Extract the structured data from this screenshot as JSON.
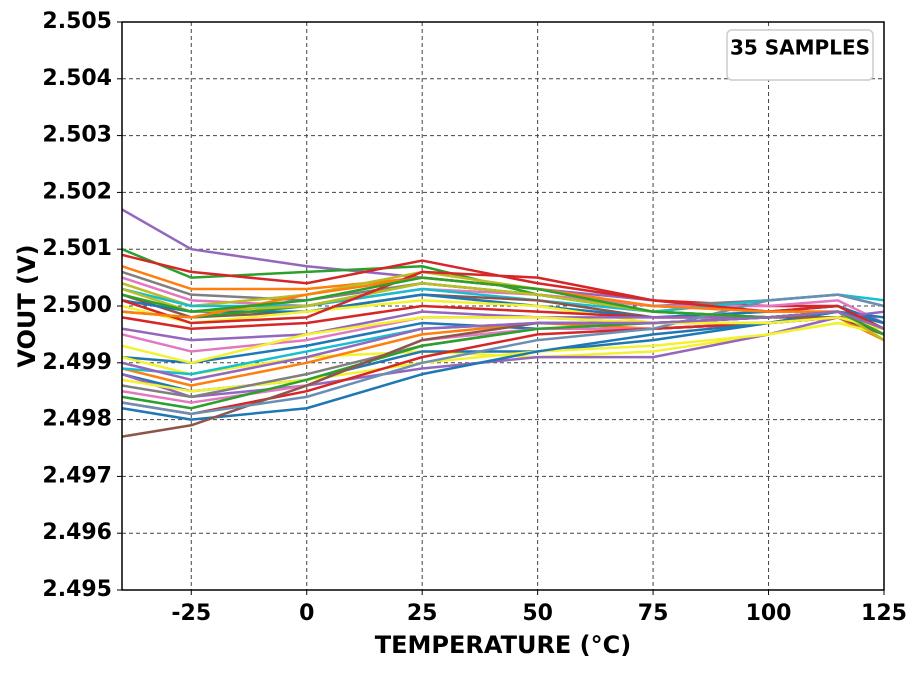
{
  "chart_data": {
    "type": "line",
    "xlabel": "TEMPERATURE (°C)",
    "ylabel": "VOUT (V)",
    "annotation": "35 SAMPLES",
    "x": [
      -40,
      -25,
      0,
      25,
      50,
      75,
      100,
      115,
      125
    ],
    "xlim": [
      -40,
      125
    ],
    "xticks": [
      -25,
      0,
      25,
      50,
      75,
      100,
      125
    ],
    "ylim": [
      2.495,
      2.505
    ],
    "yticks": [
      2.495,
      2.496,
      2.497,
      2.498,
      2.499,
      {
        "value": 2.5,
        "label": "2.500"
      },
      2.501,
      2.502,
      2.503,
      2.504,
      2.505
    ],
    "grid": true,
    "series": [
      {
        "color": "#9467bd",
        "values": [
          2.5017,
          2.501,
          2.5007,
          2.5005,
          2.5003,
          2.5001,
          2.4999,
          2.5,
          2.4996
        ]
      },
      {
        "color": "#2ca02c",
        "values": [
          2.501,
          2.5005,
          2.5006,
          2.5007,
          2.5002,
          2.4999,
          2.4998,
          2.4999,
          2.4994
        ]
      },
      {
        "color": "#d62728",
        "values": [
          2.5009,
          2.5006,
          2.5004,
          2.5008,
          2.5004,
          2.5001,
          2.5,
          2.5,
          2.4997
        ]
      },
      {
        "color": "#ff7f0e",
        "values": [
          2.5007,
          2.5003,
          2.5003,
          2.5005,
          2.5003,
          2.5,
          2.4999,
          2.4999,
          2.4995
        ]
      },
      {
        "color": "#7f7f7f",
        "values": [
          2.5006,
          2.5002,
          2.5001,
          2.5004,
          2.5002,
          2.5,
          2.5001,
          2.5002,
          2.5
        ]
      },
      {
        "color": "#e377c2",
        "values": [
          2.5005,
          2.5001,
          2.5,
          2.5003,
          2.5002,
          2.5,
          2.5,
          2.5001,
          2.4997
        ]
      },
      {
        "color": "#bcbd22",
        "values": [
          2.5004,
          2.5,
          2.5002,
          2.5006,
          2.5003,
          2.4999,
          2.4998,
          2.4998,
          2.4994
        ]
      },
      {
        "color": "#17becf",
        "values": [
          2.5003,
          2.5,
          2.5,
          2.5003,
          2.5001,
          2.4999,
          2.5001,
          2.5002,
          2.5001
        ]
      },
      {
        "color": "#8c564b",
        "values": [
          2.5002,
          2.4998,
          2.4999,
          2.5002,
          2.5001,
          2.4998,
          2.4998,
          2.4999,
          2.4996
        ]
      },
      {
        "color": "#1f77b4",
        "values": [
          2.5001,
          2.4999,
          2.4999,
          2.5002,
          2.5,
          2.4998,
          2.4999,
          2.5,
          2.4997
        ]
      },
      {
        "color": "#f2f230",
        "values": [
          2.5,
          2.4997,
          2.4999,
          2.5001,
          2.5,
          2.4997,
          2.4997,
          2.4998,
          2.4995
        ]
      },
      {
        "color": "#2ca02c",
        "values": [
          2.4999,
          2.4998,
          2.5,
          2.5004,
          2.5002,
          2.4999,
          2.4998,
          2.4999,
          2.4995
        ]
      },
      {
        "color": "#d62728",
        "values": [
          2.4998,
          2.4996,
          2.4997,
          2.5,
          2.4999,
          2.4998,
          2.4998,
          2.4999,
          2.4996
        ]
      },
      {
        "color": "#9467bd",
        "values": [
          2.4996,
          2.4994,
          2.4995,
          2.4999,
          2.4998,
          2.4998,
          2.4998,
          2.4999,
          2.4997
        ]
      },
      {
        "color": "#e377c2",
        "values": [
          2.4995,
          2.4992,
          2.4994,
          2.4998,
          2.4998,
          2.4997,
          2.4997,
          2.4998,
          2.4995
        ]
      },
      {
        "color": "#1f77b4",
        "values": [
          2.4991,
          2.499,
          2.4993,
          2.4997,
          2.4996,
          2.4996,
          2.4997,
          2.4999,
          2.4996
        ]
      },
      {
        "color": "#f2f230",
        "values": [
          2.4991,
          2.4988,
          2.4991,
          2.4992,
          2.4991,
          2.4992,
          2.4995,
          2.4997,
          2.4996
        ]
      },
      {
        "color": "#ff7f0e",
        "values": [
          2.4989,
          2.4986,
          2.499,
          2.4995,
          2.4997,
          2.4996,
          2.4997,
          2.4998,
          2.4994
        ]
      },
      {
        "color": "#17becf",
        "values": [
          2.4989,
          2.4988,
          2.4992,
          2.4996,
          2.4997,
          2.4997,
          2.4998,
          2.4999,
          2.4996
        ]
      },
      {
        "color": "#1f77b4",
        "values": [
          2.4988,
          2.4985,
          2.4987,
          2.4992,
          2.4992,
          2.4994,
          2.4997,
          2.4999,
          2.4998
        ]
      },
      {
        "color": "#9467bd",
        "values": [
          2.4988,
          2.4984,
          2.4986,
          2.4989,
          2.4991,
          2.4991,
          2.4995,
          2.4998,
          2.4999
        ]
      },
      {
        "color": "#f2f230",
        "values": [
          2.4987,
          2.4985,
          2.4987,
          2.499,
          2.4992,
          2.4993,
          2.4995,
          2.4997,
          2.4995
        ]
      },
      {
        "color": "#7f7f7f",
        "values": [
          2.4986,
          2.4984,
          2.4988,
          2.4993,
          2.4996,
          2.4996,
          2.4997,
          2.4998,
          2.4996
        ]
      },
      {
        "color": "#e377c2",
        "values": [
          2.4985,
          2.4983,
          2.4986,
          2.4994,
          2.4996,
          2.4996,
          2.4997,
          2.4998,
          2.4995
        ]
      },
      {
        "color": "#2ca02c",
        "values": [
          2.4984,
          2.4982,
          2.4987,
          2.4993,
          2.4996,
          2.4997,
          2.4998,
          2.4999,
          2.4996
        ]
      },
      {
        "color": "#d62728",
        "values": [
          2.4983,
          2.4981,
          2.4985,
          2.4991,
          2.4995,
          2.4996,
          2.4997,
          2.4998,
          2.4996
        ]
      },
      {
        "color": "#1f77b4",
        "values": [
          2.4982,
          2.498,
          2.4982,
          2.4988,
          2.4992,
          2.4995,
          2.4997,
          2.4999,
          2.4997
        ]
      },
      {
        "color": "#8c564b",
        "values": [
          2.4977,
          2.4979,
          2.4986,
          2.4994,
          2.4997,
          2.4997,
          2.4998,
          2.4998,
          2.4995
        ]
      },
      {
        "color": "#6b8fb3",
        "values": [
          2.4983,
          2.4981,
          2.4984,
          2.499,
          2.4994,
          2.4996,
          2.5001,
          2.5002,
          2.5
        ]
      },
      {
        "color": "#bcbd22",
        "values": [
          2.5003,
          2.4999,
          2.5,
          2.5004,
          2.5002,
          2.4999,
          2.4998,
          2.4999,
          2.4994
        ]
      },
      {
        "color": "#d62728",
        "values": [
          2.5001,
          2.4997,
          2.4998,
          2.5006,
          2.5005,
          2.5001,
          2.4999,
          2.5,
          2.4996
        ]
      },
      {
        "color": "#ff7f0e",
        "values": [
          2.4999,
          2.4998,
          2.5002,
          2.5005,
          2.5003,
          2.5,
          2.4999,
          2.4999,
          2.4996
        ]
      },
      {
        "color": "#f2f230",
        "values": [
          2.4993,
          2.499,
          2.4995,
          2.4998,
          2.4998,
          2.4997,
          2.4997,
          2.4998,
          2.4996
        ]
      },
      {
        "color": "#2ca02c",
        "values": [
          2.5002,
          2.4999,
          2.5001,
          2.5005,
          2.5003,
          2.4999,
          2.4998,
          2.4999,
          2.4995
        ]
      },
      {
        "color": "#9467bd",
        "values": [
          2.499,
          2.4987,
          2.4991,
          2.4996,
          2.4997,
          2.4997,
          2.4998,
          2.4999,
          2.4996
        ]
      }
    ]
  }
}
